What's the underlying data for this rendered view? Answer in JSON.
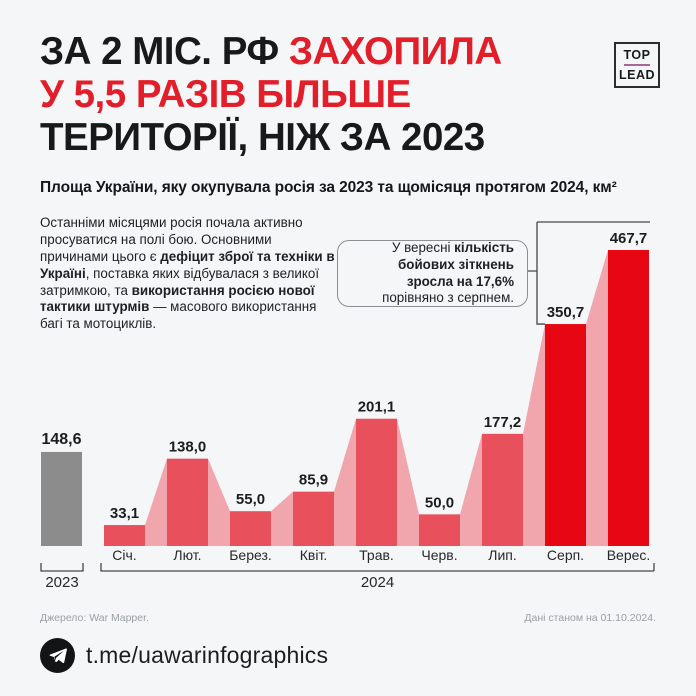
{
  "colors": {
    "background": "#f4f6f7",
    "text_dark": "#17191b",
    "accent_red": "#e21e2a",
    "bar_red": "#e8515c",
    "bar_pink": "#f1a6ad",
    "bar_highlight_red": "#e60713",
    "bar_gray_2023": "#8c8c8c",
    "muted_text": "#9aa0a4",
    "logo_line_purple": "#a8679b"
  },
  "header": {
    "title_lines": [
      {
        "segments": [
          {
            "text": "ЗА 2 МІС. РФ ",
            "red": false
          },
          {
            "text": "ЗАХОПИЛА",
            "red": true
          }
        ]
      },
      {
        "segments": [
          {
            "text": "У 5,5 РАЗІВ БІЛЬШЕ",
            "red": true
          }
        ]
      },
      {
        "segments": [
          {
            "text": "ТЕРИТОРІЇ, НІЖ ЗА 2023",
            "red": false
          }
        ]
      }
    ],
    "logo": {
      "top": "TOP",
      "lead": "LEAD"
    }
  },
  "subtitle": "Площа України, яку окупувала росія за 2023 та щомісяця протягом 2024, км²",
  "intro": {
    "segments": [
      {
        "text": "Останніми місяцями росія почала активно просуватися на полі бою. Основними причинами цього є ",
        "bold": false
      },
      {
        "text": "дефіцит зброї та техніки в Україні",
        "bold": true
      },
      {
        "text": ", поставка яких відбувалася з великої затримкою, та ",
        "bold": false
      },
      {
        "text": "використання росією нової тактики штурмів",
        "bold": true
      },
      {
        "text": " — масового використання багі та мотоциклів.",
        "bold": false
      }
    ]
  },
  "callout": {
    "segments": [
      {
        "text": "У вересні ",
        "bold": false
      },
      {
        "text": "кількість бойових зіткнень зросла на 17,6%",
        "bold": true
      },
      {
        "text": " порівняно з серпнем.",
        "bold": false
      }
    ]
  },
  "chart_data": {
    "type": "bar",
    "title": "Площа України, яку окупувала росія за 2023 та щомісяця протягом 2024, км²",
    "unit": "км²",
    "baseline_bar": {
      "group_label": "2023",
      "value": 148.6,
      "value_label": "148,6"
    },
    "categories": [
      "Січ.",
      "Лют.",
      "Берез.",
      "Квіт.",
      "Трав.",
      "Черв.",
      "Лип.",
      "Серп.",
      "Верес."
    ],
    "values": [
      33.1,
      138.0,
      55.0,
      85.9,
      201.1,
      50.0,
      177.2,
      350.7,
      467.7
    ],
    "value_labels": [
      "33,1",
      "138,0",
      "55,0",
      "85,9",
      "201,1",
      "50,0",
      "177,2",
      "350,7",
      "467,7"
    ],
    "group_label": "2024",
    "highlight_indices": [
      7,
      8
    ],
    "ylim": [
      0,
      480
    ],
    "grid": false,
    "legend": false
  },
  "footer": {
    "source": "Джерело: War Mapper.",
    "data_note": "Дані станом на 01.10.2024.",
    "telegram": "t.me/uawarinfographics"
  }
}
